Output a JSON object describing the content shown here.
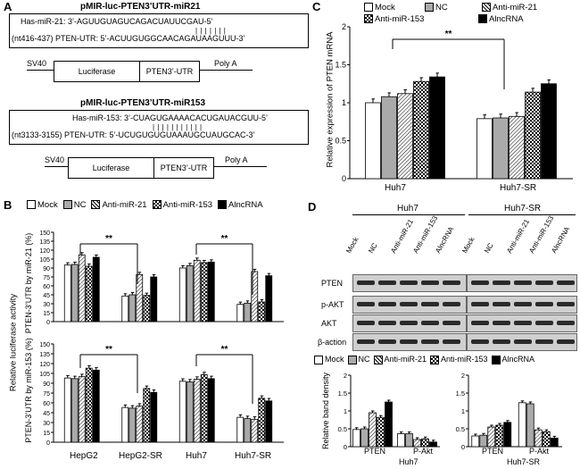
{
  "panels": {
    "a": "A",
    "b": "B",
    "c": "C",
    "d": "D"
  },
  "panel_a": {
    "construct1_title": "pMIR-luc-PTEN3’UTR-miR21",
    "c1_line1": "Has-miR-21: 3’-AGUUGUAGUCAGACUAUUCGAU-5’",
    "c1_line2": "(nt416-437) PTEN-UTR: 5’-ACUUGUGGCAACAGAUAAGUUU-3’",
    "construct2_title": "pMIR-luc-PTEN3’UTR-miR153",
    "c2_line1": "Has-miR-153: 3’-CUAGUGAAAACACUGAUACGUU-5’",
    "c2_line2": "(nt3133-3155) PTEN-UTR: 5’-UCUGUGUGUAAAUGCUAUGCAC-3’",
    "sv40": "SV40",
    "luciferase": "Luciferase",
    "pten_utr": "PTEN3’-UTR",
    "polya": "Poly A"
  },
  "legend_labels": [
    "Mock",
    "NC",
    "Anti-miR-21",
    "Anti-miR-153",
    "AlncRNA"
  ],
  "panel_b": {
    "ylabel_common": "Relative luciferase activity",
    "ylabel_top": "PTEN-3’UTR by miR-21 (%)",
    "ylabel_bottom": "PTEN-3’UTR by miR-153 (%)",
    "groups": [
      "HepG2",
      "HepG2-SR",
      "Huh7",
      "Huh7-SR"
    ],
    "sig": "**",
    "ticks": [
      "0",
      "15",
      "30",
      "45",
      "60",
      "75",
      "90",
      "105",
      "120",
      "135",
      "150"
    ]
  },
  "panel_c": {
    "ylabel": "Relative expression of PTEN mRNA",
    "groups": [
      "Huh7",
      "Huh7-SR"
    ],
    "sig": "**",
    "ticks": [
      "0",
      "0.5",
      "1",
      "1.5",
      "2"
    ]
  },
  "panel_d": {
    "cell_huh7": "Huh7",
    "cell_huh7sr": "Huh7-SR",
    "lane_labels": [
      "Mock",
      "NC",
      "Anti-miR-21",
      "Anti-miR-153",
      "AlncRNA"
    ],
    "blot_rows": [
      "PTEN",
      "p-AKT",
      "AKT",
      "β-action"
    ],
    "ylabel": "Relative band density",
    "x_labels": [
      "PTEN",
      "P-Akt"
    ],
    "ticks": [
      "0",
      "0.5",
      "1",
      "1.5",
      "2"
    ]
  },
  "chart_data": [
    {
      "type": "bar",
      "title": "Luciferase activity PTEN-3'UTR by miR-21",
      "ylabel": "PTEN-3'UTR by miR-21 (%)",
      "categories": [
        "HepG2",
        "HepG2-SR",
        "Huh7",
        "Huh7-SR"
      ],
      "ylim": [
        0,
        150
      ],
      "series": [
        {
          "name": "Mock",
          "values": [
            95,
            43,
            90,
            29
          ]
        },
        {
          "name": "NC",
          "values": [
            96,
            45,
            94,
            31
          ]
        },
        {
          "name": "Anti-miR-21",
          "values": [
            112,
            79,
            103,
            84
          ]
        },
        {
          "name": "Anti-miR-153",
          "values": [
            93,
            44,
            99,
            33
          ]
        },
        {
          "name": "AlncRNA",
          "values": [
            108,
            75,
            100,
            77
          ]
        }
      ]
    },
    {
      "type": "bar",
      "title": "Luciferase activity PTEN-3'UTR by miR-153",
      "ylabel": "PTEN-3'UTR by miR-153 (%)",
      "categories": [
        "HepG2",
        "HepG2-SR",
        "Huh7",
        "Huh7-SR"
      ],
      "ylim": [
        0,
        150
      ],
      "series": [
        {
          "name": "Mock",
          "values": [
            98,
            53,
            93,
            38
          ]
        },
        {
          "name": "NC",
          "values": [
            97,
            52,
            92,
            36
          ]
        },
        {
          "name": "Anti-miR-21",
          "values": [
            100,
            55,
            96,
            35
          ]
        },
        {
          "name": "Anti-miR-153",
          "values": [
            113,
            82,
            103,
            67
          ]
        },
        {
          "name": "AlncRNA",
          "values": [
            110,
            76,
            97,
            63
          ]
        }
      ]
    },
    {
      "type": "bar",
      "title": "Relative expression of PTEN mRNA",
      "ylabel": "Relative expression of PTEN mRNA",
      "categories": [
        "Huh7",
        "Huh7-SR"
      ],
      "ylim": [
        0,
        2
      ],
      "series": [
        {
          "name": "Mock",
          "values": [
            1.0,
            0.79
          ]
        },
        {
          "name": "NC",
          "values": [
            1.08,
            0.8
          ]
        },
        {
          "name": "Anti-miR-21",
          "values": [
            1.12,
            0.82
          ]
        },
        {
          "name": "Anti-miR-153",
          "values": [
            1.28,
            1.14
          ]
        },
        {
          "name": "AlncRNA",
          "values": [
            1.34,
            1.25
          ]
        }
      ]
    },
    {
      "type": "bar",
      "title": "Relative band density Huh7",
      "ylabel": "Relative band density",
      "categories": [
        "PTEN",
        "P-Akt"
      ],
      "ylim": [
        0,
        2
      ],
      "series": [
        {
          "name": "Mock",
          "values": [
            0.48,
            0.36
          ]
        },
        {
          "name": "NC",
          "values": [
            0.5,
            0.36
          ]
        },
        {
          "name": "Anti-miR-21",
          "values": [
            0.95,
            0.2
          ]
        },
        {
          "name": "Anti-miR-153",
          "values": [
            0.82,
            0.22
          ]
        },
        {
          "name": "AlncRNA",
          "values": [
            1.25,
            0.13
          ]
        }
      ]
    },
    {
      "type": "bar",
      "title": "Relative band density Huh7-SR",
      "ylabel": "Relative band density",
      "categories": [
        "PTEN",
        "P-Akt"
      ],
      "ylim": [
        0,
        2
      ],
      "series": [
        {
          "name": "Mock",
          "values": [
            0.3,
            1.23
          ]
        },
        {
          "name": "NC",
          "values": [
            0.32,
            1.2
          ]
        },
        {
          "name": "Anti-miR-21",
          "values": [
            0.55,
            0.47
          ]
        },
        {
          "name": "Anti-miR-153",
          "values": [
            0.6,
            0.42
          ]
        },
        {
          "name": "AlncRNA",
          "values": [
            0.68,
            0.24
          ]
        }
      ]
    }
  ]
}
